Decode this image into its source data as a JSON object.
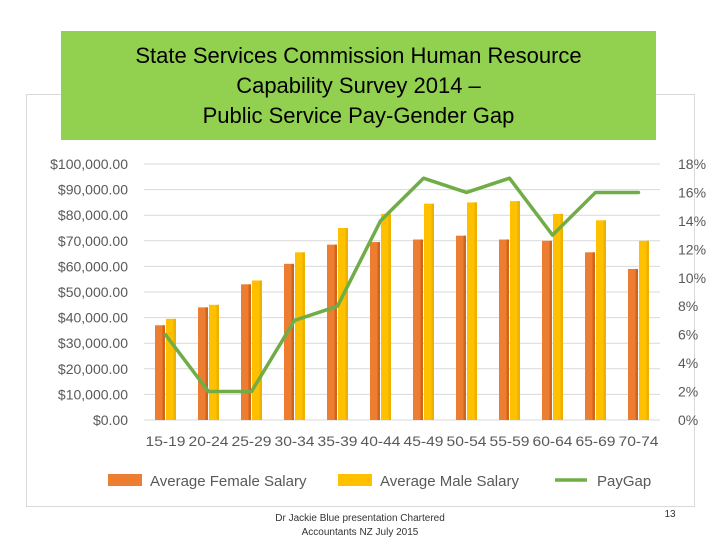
{
  "slide": {
    "title_lines": [
      "State Services Commission Human Resource",
      "Capability Survey 2014 –",
      "Public Service Pay-Gender Gap"
    ],
    "title_bg": "#92d050",
    "footer_lines": [
      "Dr Jackie Blue presentation Chartered",
      "Accountants NZ July 2015"
    ],
    "slide_number": "13"
  },
  "chart_data": {
    "type": "bar",
    "categories": [
      "15-19",
      "20-24",
      "25-29",
      "30-34",
      "35-39",
      "40-44",
      "45-49",
      "50-54",
      "55-59",
      "60-64",
      "65-69",
      "70-74"
    ],
    "series": [
      {
        "name": "Average Female Salary",
        "type": "bar",
        "axis": "left",
        "color": "#ed7d31",
        "values": [
          37000,
          44000,
          53000,
          61000,
          68500,
          69500,
          70500,
          72000,
          70500,
          70000,
          65500,
          59000
        ]
      },
      {
        "name": "Average Male Salary",
        "type": "bar",
        "axis": "left",
        "color": "#ffc000",
        "values": [
          39500,
          45000,
          54500,
          65500,
          75000,
          80500,
          84500,
          85000,
          85500,
          80500,
          78000,
          70000
        ]
      },
      {
        "name": "PayGap",
        "type": "line",
        "axis": "right",
        "color": "#70ad47",
        "values": [
          6,
          2,
          2,
          7,
          8,
          14,
          17,
          16,
          17,
          13,
          16,
          16
        ]
      }
    ],
    "left_axis": {
      "ylim": [
        0,
        100000
      ],
      "tick_labels": [
        "$0.00",
        "$10,000.00",
        "$20,000.00",
        "$30,000.00",
        "$40,000.00",
        "$50,000.00",
        "$60,000.00",
        "$70,000.00",
        "$80,000.00",
        "$90,000.00",
        "$100,000.00"
      ]
    },
    "right_axis": {
      "ylim": [
        0,
        18
      ],
      "tick_labels": [
        "0%",
        "2%",
        "4%",
        "6%",
        "8%",
        "10%",
        "12%",
        "14%",
        "16%",
        "18%"
      ]
    },
    "grid": true,
    "legend_position": "bottom"
  }
}
